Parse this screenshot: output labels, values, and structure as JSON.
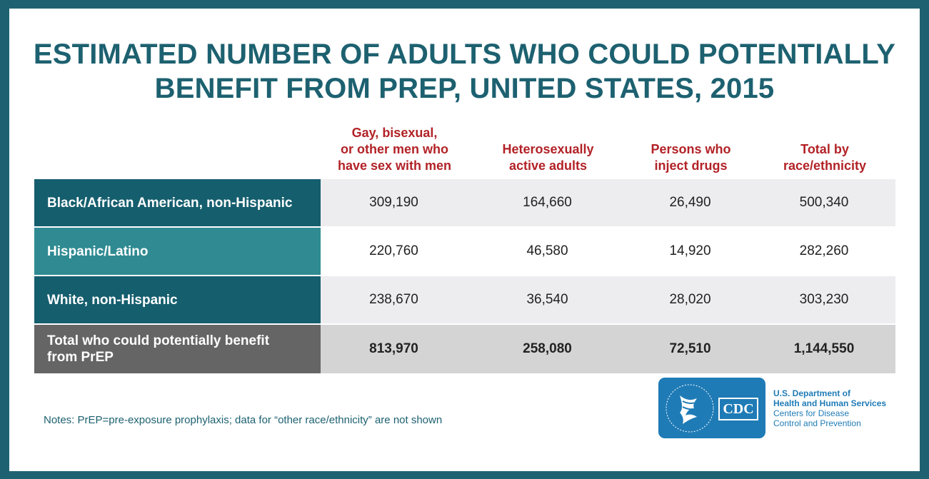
{
  "title": {
    "line1": "ESTIMATED NUMBER OF ADULTS WHO COULD POTENTIALLY",
    "line2": "BENEFIT FROM PREP, UNITED STATES, 2015"
  },
  "chart_data": {
    "type": "table",
    "title": "ESTIMATED NUMBER OF ADULTS WHO COULD POTENTIALLY BENEFIT FROM PREP, UNITED STATES, 2015",
    "columns": [
      "Gay, bisexual,\nor other men who\nhave sex with men",
      "Heterosexually\nactive adults",
      "Persons who\ninject drugs",
      "Total by\nrace/ethnicity"
    ],
    "rows": [
      {
        "label": "Black/African American, non-Hispanic",
        "values": [
          "309,190",
          "164,660",
          "26,490",
          "500,340"
        ]
      },
      {
        "label": "Hispanic/Latino",
        "values": [
          "220,760",
          "46,580",
          "14,920",
          "282,260"
        ]
      },
      {
        "label": "White, non-Hispanic",
        "values": [
          "238,670",
          "36,540",
          "28,020",
          "303,230"
        ]
      },
      {
        "label": "Total who could potentially benefit\n from PrEP",
        "values": [
          "813,970",
          "258,080",
          "72,510",
          "1,144,550"
        ]
      }
    ]
  },
  "notes": "Notes: PrEP=pre-exposure prophylaxis; data for “other race/ethnicity” are not shown",
  "logo": {
    "cdc_text": "CDC",
    "seal_icon": "hhs-eagle-seal-icon",
    "dept_line1": "U.S. Department of",
    "dept_line2": "Health and Human Services",
    "cdc_line1": "Centers for Disease",
    "cdc_line2": "Control and Prevention"
  },
  "colors": {
    "frame": "#1e6272",
    "title": "#1d6170",
    "header": "#b22227",
    "row_dark": "#155e6e",
    "row_teal": "#2f8a92",
    "row_total": "#656566",
    "logo_blue": "#1f7bb6"
  }
}
